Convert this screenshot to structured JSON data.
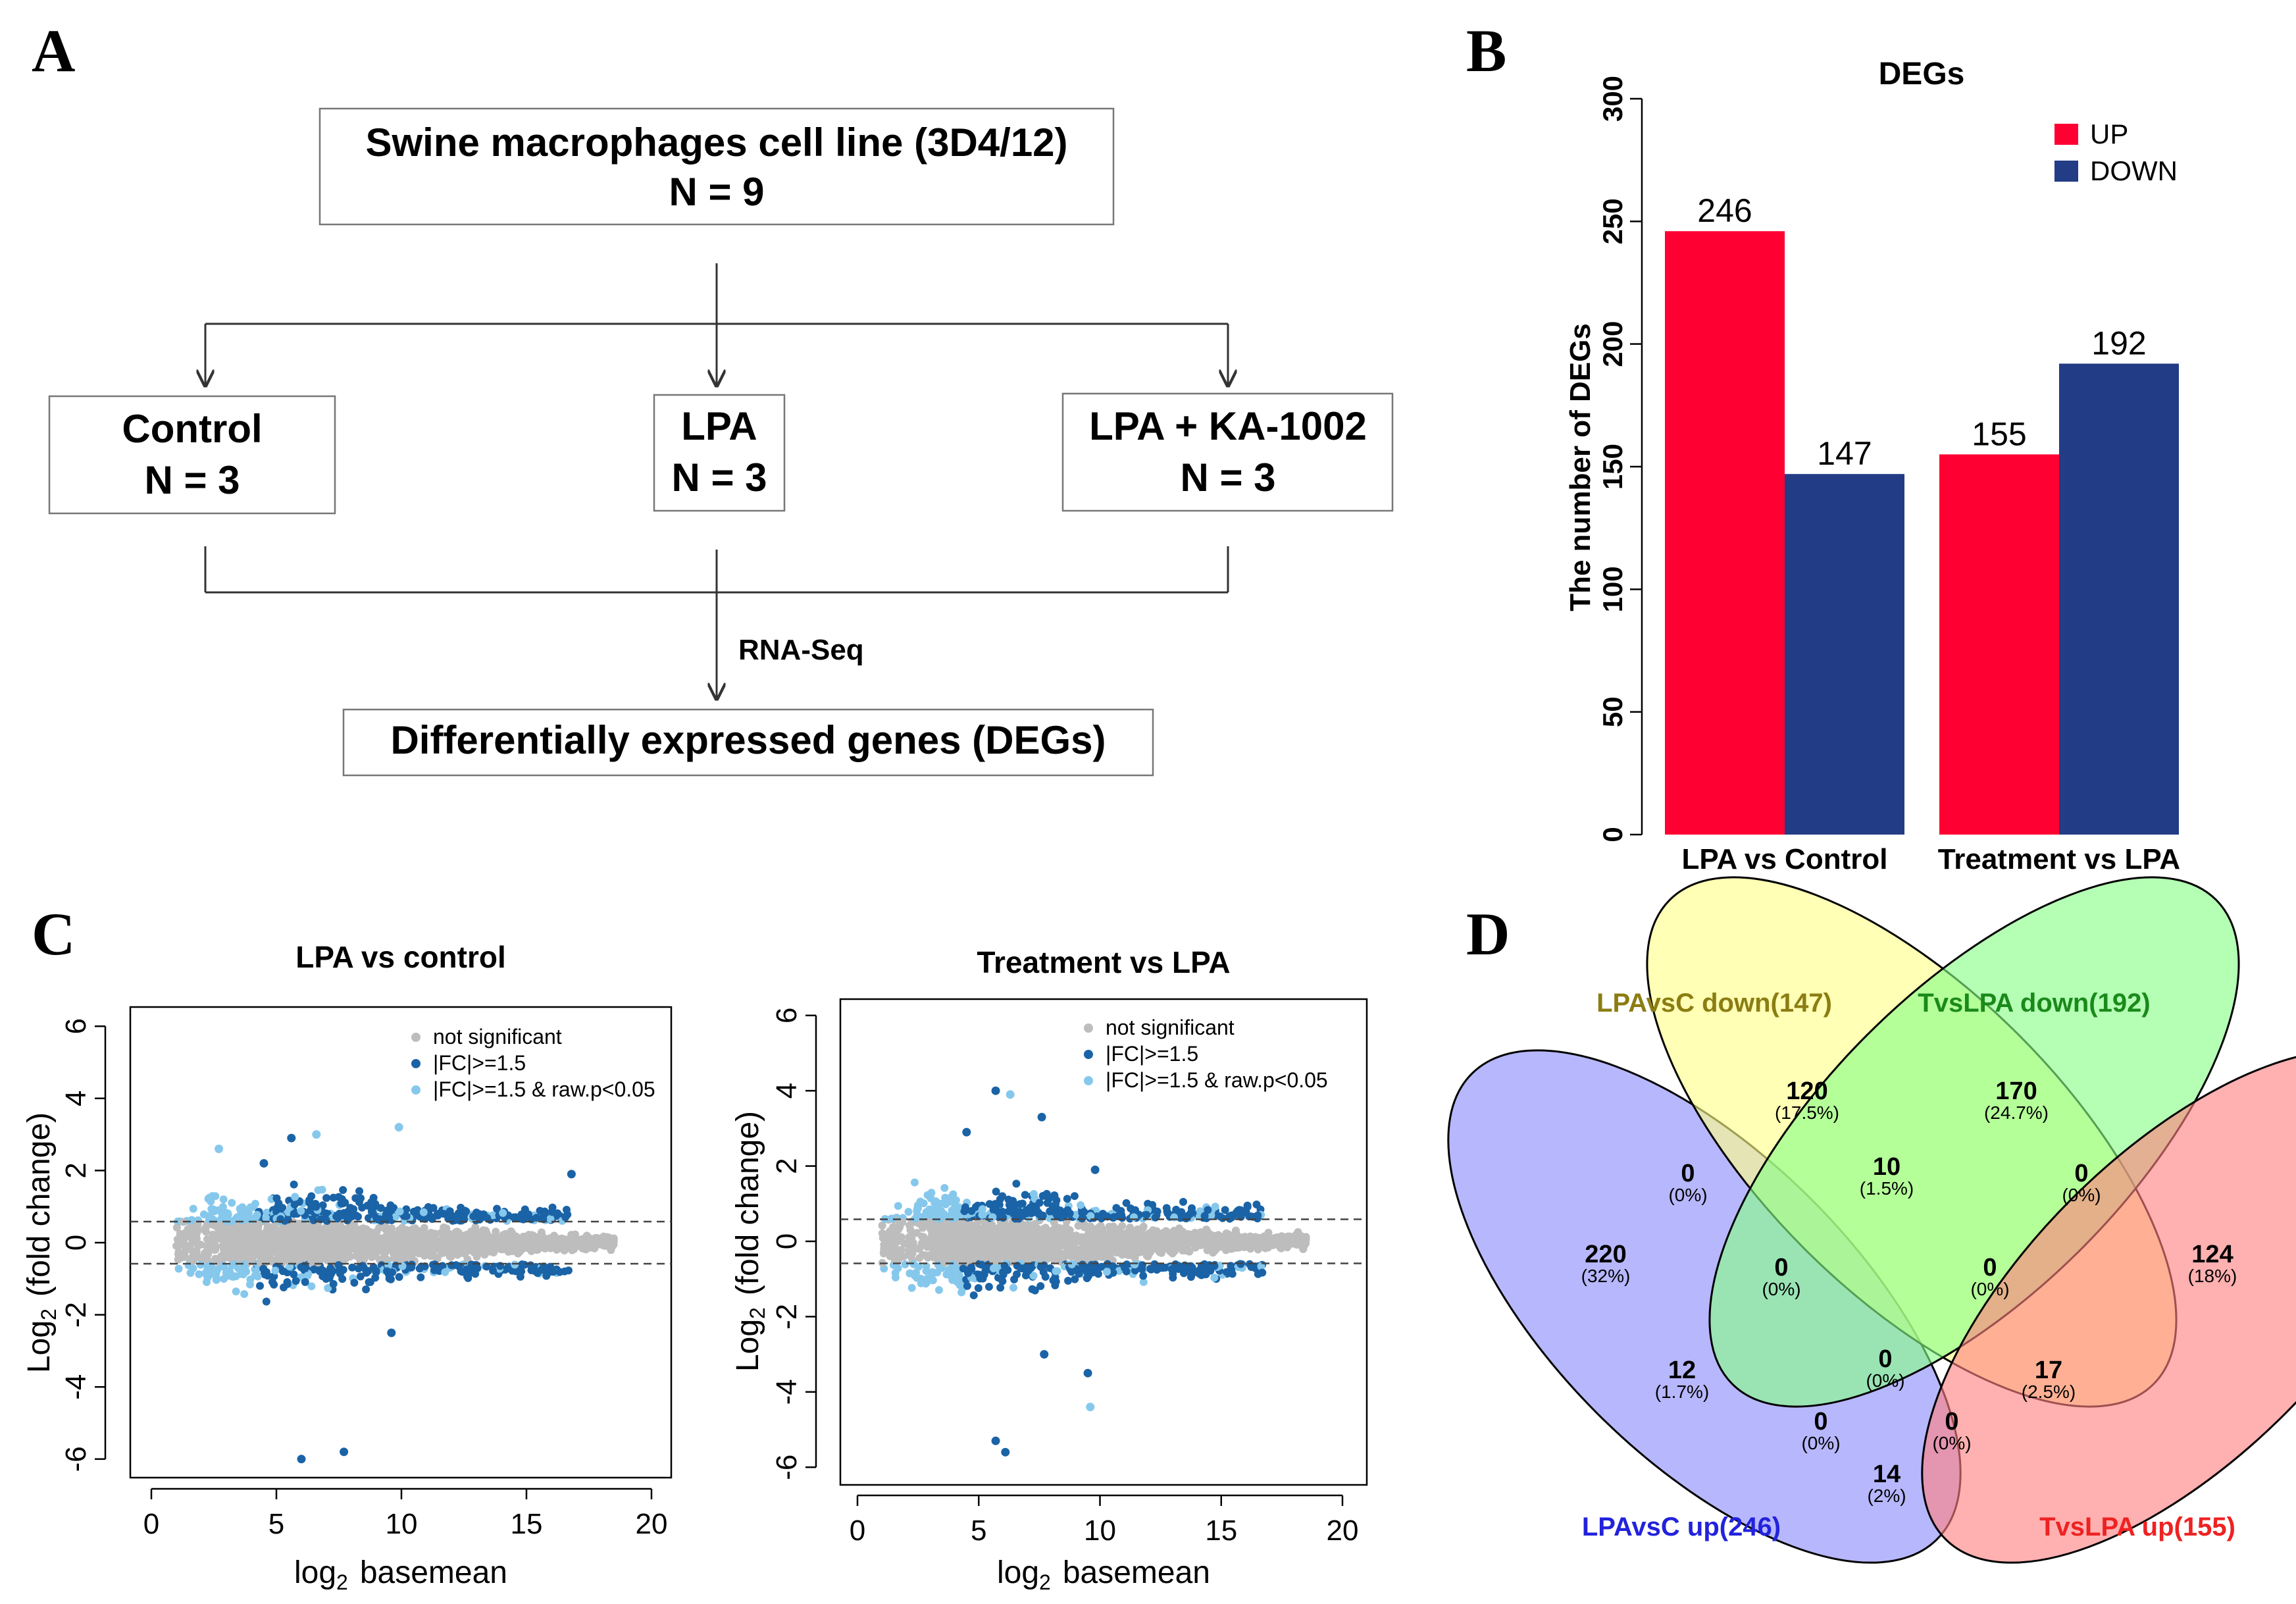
{
  "panel_labels": {
    "a": "A",
    "b": "B",
    "c": "C",
    "d": "D"
  },
  "flowchart": {
    "top": {
      "line1": "Swine macrophages cell line (3D4/12)",
      "line2": "N = 9"
    },
    "groups": [
      {
        "name": "Control",
        "n": "N = 3"
      },
      {
        "name": "LPA",
        "n": "N = 3"
      },
      {
        "name": "LPA + KA-1002",
        "n": "N = 3"
      }
    ],
    "method": "RNA-Seq",
    "result": "Differentially expressed genes (DEGs)"
  },
  "chart_data": [
    {
      "type": "bar",
      "title": "DEGs",
      "ylabel": "The number of DEGs",
      "categories": [
        "LPA vs Control",
        "Treatment vs LPA"
      ],
      "series": [
        {
          "name": "UP",
          "values": [
            246,
            155
          ],
          "color": "#ff0033"
        },
        {
          "name": "DOWN",
          "values": [
            147,
            192
          ],
          "color": "#223c85"
        }
      ],
      "data_labels": [
        [
          "246",
          "155"
        ],
        [
          "147",
          "192"
        ]
      ],
      "ylim": [
        0,
        300
      ],
      "yticks": [
        0,
        50,
        100,
        150,
        200,
        250,
        300
      ],
      "legend": "top-right"
    },
    {
      "type": "scatter",
      "subtype": "MA plot",
      "title": "LPA vs control",
      "xlabel_main": "log",
      "xlabel_sub": "2",
      "xlabel_rest": "basemean",
      "ylabel_main": "Log",
      "ylabel_sub": "2",
      "ylabel_rest": "(fold change)",
      "xlim": [
        0,
        20
      ],
      "ylim": [
        -6,
        6
      ],
      "xticks": [
        0,
        5,
        10,
        15,
        20
      ],
      "yticks": [
        -6,
        -4,
        -2,
        0,
        2,
        4,
        6
      ],
      "threshold_lines": [
        0.585,
        -0.585
      ],
      "legend": [
        {
          "label": "not significant",
          "color": "#bdbdbd"
        },
        {
          "label": "|FC|>=1.5",
          "color": "#1a63a6"
        },
        {
          "label": "|FC|>=1.5 & raw.p<0.05",
          "color": "#86c8ec"
        }
      ],
      "outliers": [
        {
          "x": 6.0,
          "y": -6.0,
          "color": "#1a63a6"
        },
        {
          "x": 7.7,
          "y": -5.8,
          "color": "#1a63a6"
        },
        {
          "x": 9.6,
          "y": -2.5,
          "color": "#1a63a6"
        },
        {
          "x": 9.9,
          "y": 3.2,
          "color": "#86c8ec"
        },
        {
          "x": 6.6,
          "y": 3.0,
          "color": "#86c8ec"
        },
        {
          "x": 5.6,
          "y": 2.9,
          "color": "#1a63a6"
        },
        {
          "x": 16.8,
          "y": 1.9,
          "color": "#1a63a6"
        },
        {
          "x": 2.7,
          "y": 2.6,
          "color": "#86c8ec"
        },
        {
          "x": 4.5,
          "y": 2.2,
          "color": "#1a63a6"
        }
      ]
    },
    {
      "type": "scatter",
      "subtype": "MA plot",
      "title": "Treatment vs LPA",
      "xlabel_main": "log",
      "xlabel_sub": "2",
      "xlabel_rest": "basemean",
      "ylabel_main": "Log",
      "ylabel_sub": "2",
      "ylabel_rest": "(fold change)",
      "xlim": [
        0,
        20
      ],
      "ylim": [
        -6,
        6
      ],
      "xticks": [
        0,
        5,
        10,
        15,
        20
      ],
      "yticks": [
        -6,
        -4,
        -2,
        0,
        2,
        4,
        6
      ],
      "threshold_lines": [
        0.585,
        -0.585
      ],
      "legend": [
        {
          "label": "not significant",
          "color": "#bdbdbd"
        },
        {
          "label": "|FC|>=1.5",
          "color": "#1a63a6"
        },
        {
          "label": "|FC|>=1.5 & raw.p<0.05",
          "color": "#86c8ec"
        }
      ],
      "outliers": [
        {
          "x": 5.7,
          "y": 4.0,
          "color": "#1a63a6"
        },
        {
          "x": 6.3,
          "y": 3.9,
          "color": "#86c8ec"
        },
        {
          "x": 7.6,
          "y": 3.3,
          "color": "#1a63a6"
        },
        {
          "x": 4.5,
          "y": 2.9,
          "color": "#1a63a6"
        },
        {
          "x": 5.7,
          "y": -5.3,
          "color": "#1a63a6"
        },
        {
          "x": 6.1,
          "y": -5.6,
          "color": "#1a63a6"
        },
        {
          "x": 9.6,
          "y": -4.4,
          "color": "#86c8ec"
        },
        {
          "x": 9.5,
          "y": -3.5,
          "color": "#1a63a6"
        },
        {
          "x": 7.7,
          "y": -3.0,
          "color": "#1a63a6"
        },
        {
          "x": 9.8,
          "y": 1.9,
          "color": "#1a63a6"
        }
      ]
    },
    {
      "type": "venn",
      "sets": [
        {
          "name": "LPAvsC up(246)",
          "color": "#2222dd",
          "fill": "#8a8afc"
        },
        {
          "name": "LPAvsC down(147)",
          "color": "#8b7d12",
          "fill": "#ffff88"
        },
        {
          "name": "TvsLPA down(192)",
          "color": "#1a8a1a",
          "fill": "#88ff88"
        },
        {
          "name": "TvsLPA up(155)",
          "color": "#ee2222",
          "fill": "#ff8080"
        }
      ],
      "regions": [
        {
          "id": "only-up-lpa",
          "count": "220",
          "pct": "(32%)"
        },
        {
          "id": "only-down-lpa",
          "count": "120",
          "pct": "(17.5%)"
        },
        {
          "id": "only-down-t",
          "count": "170",
          "pct": "(24.7%)"
        },
        {
          "id": "only-up-t",
          "count": "124",
          "pct": "(18%)"
        },
        {
          "id": "upA-downA",
          "count": "0",
          "pct": "(0%)"
        },
        {
          "id": "downA-downT",
          "count": "10",
          "pct": "(1.5%)"
        },
        {
          "id": "downT-upT",
          "count": "0",
          "pct": "(0%)"
        },
        {
          "id": "upA-downA-downT",
          "count": "0",
          "pct": "(0%)"
        },
        {
          "id": "downA-downT-upT",
          "count": "0",
          "pct": "(0%)"
        },
        {
          "id": "upA-downT",
          "count": "12",
          "pct": "(1.7%)"
        },
        {
          "id": "all-four",
          "count": "0",
          "pct": "(0%)"
        },
        {
          "id": "downA-upT",
          "count": "17",
          "pct": "(2.5%)"
        },
        {
          "id": "upA-downT-upT",
          "count": "0",
          "pct": "(0%)"
        },
        {
          "id": "upA-downA-upT",
          "count": "0",
          "pct": "(0%)"
        },
        {
          "id": "upA-upT",
          "count": "14",
          "pct": "(2%)"
        }
      ]
    }
  ]
}
